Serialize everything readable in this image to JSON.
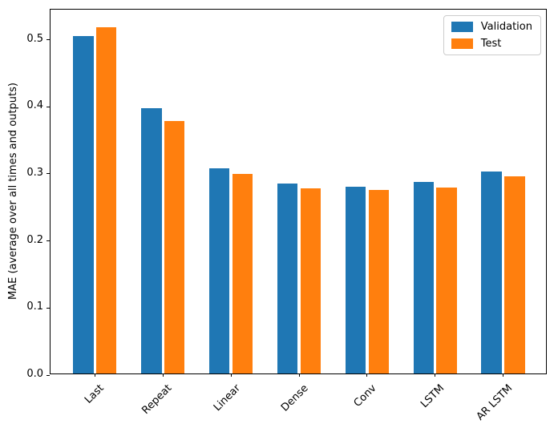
{
  "window": {
    "background": "#ffffff"
  },
  "chart_data": {
    "type": "bar",
    "title": "",
    "xlabel": "",
    "ylabel": "MAE (average over all times and outputs)",
    "categories": [
      "Last",
      "Repeat",
      "Linear",
      "Dense",
      "Conv",
      "LSTM",
      "AR LSTM"
    ],
    "series": [
      {
        "name": "Validation",
        "color": "#1f77b4",
        "values": [
          0.503,
          0.396,
          0.306,
          0.283,
          0.279,
          0.286,
          0.301
        ]
      },
      {
        "name": "Test",
        "color": "#ff7f0e",
        "values": [
          0.516,
          0.377,
          0.298,
          0.276,
          0.274,
          0.277,
          0.294
        ]
      }
    ],
    "ylim": [
      0,
      0.545
    ],
    "yticks": [
      {
        "value": 0.0,
        "label": "0.0"
      },
      {
        "value": 0.1,
        "label": "0.1"
      },
      {
        "value": 0.2,
        "label": "0.2"
      },
      {
        "value": 0.3,
        "label": "0.3"
      },
      {
        "value": 0.4,
        "label": "0.4"
      },
      {
        "value": 0.5,
        "label": "0.5"
      }
    ],
    "xtick_rotation_deg": 45,
    "grid": false,
    "legend": {
      "position": "upper right"
    },
    "bar_width": 0.3,
    "bar_pair_offset": 0.17,
    "axis_color": "#000000",
    "text_color": "#000000",
    "legend_border_color": "#cccccc"
  }
}
